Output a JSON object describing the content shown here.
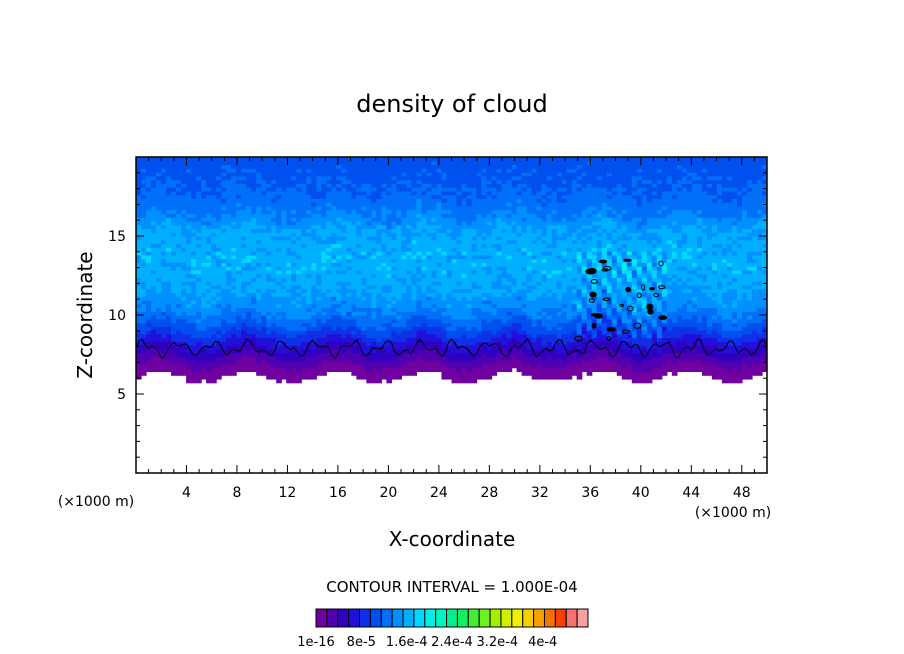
{
  "chart_data": {
    "type": "heatmap",
    "title": "density of cloud",
    "xlabel": "X-coordinate",
    "ylabel": "Z-coordinate",
    "x_unit_left": "(×1000 m)",
    "x_unit_right": "(×1000 m)",
    "xlim": [
      0,
      50
    ],
    "ylim": [
      0,
      20
    ],
    "x_ticks": [
      "4",
      "8",
      "12",
      "16",
      "20",
      "24",
      "28",
      "32",
      "36",
      "40",
      "44",
      "48"
    ],
    "y_ticks": [
      "5",
      "10",
      "15"
    ],
    "contour_interval_text": "CONTOUR INTERVAL = 1.000E-04",
    "colorbar": {
      "n_levels": 25,
      "min": 1e-16,
      "max": 0.00048,
      "labels": [
        "1e-16",
        "8e-5",
        "1.6e-4",
        "2.4e-4",
        "3.2e-4",
        "4e-4"
      ],
      "label_values": [
        1e-16,
        8e-05,
        0.00016,
        0.00024,
        0.00032,
        0.0004
      ]
    },
    "field_profile": [
      {
        "z": 6.0,
        "value": 2e-06
      },
      {
        "z": 6.6,
        "value": 1e-05
      },
      {
        "z": 7.2,
        "value": 3e-05
      },
      {
        "z": 7.8,
        "value": 5e-05
      },
      {
        "z": 8.4,
        "value": 7.5e-05
      },
      {
        "z": 9.2,
        "value": 0.000105
      },
      {
        "z": 10.2,
        "value": 0.000135
      },
      {
        "z": 11.5,
        "value": 0.000155
      },
      {
        "z": 13.5,
        "value": 0.000165
      },
      {
        "z": 15.5,
        "value": 0.000155
      },
      {
        "z": 16.5,
        "value": 0.00013
      },
      {
        "z": 18.0,
        "value": 0.000115
      },
      {
        "z": 20.0,
        "value": 0.000105
      }
    ],
    "cloud_base_z": 6.1,
    "contour_value": 0.0001
  },
  "colors": {
    "palette": [
      "#7000a0",
      "#5000b0",
      "#3000c0",
      "#2010d8",
      "#1030e8",
      "#0050f0",
      "#0070f8",
      "#0090ff",
      "#00b0ff",
      "#00d8ff",
      "#00f0e8",
      "#00f8c0",
      "#00f090",
      "#10f060",
      "#40f030",
      "#70f020",
      "#a0f000",
      "#d0f000",
      "#f0f000",
      "#f8d000",
      "#f8a000",
      "#f87000",
      "#f84000",
      "#f87070",
      "#f8a0a0"
    ]
  }
}
